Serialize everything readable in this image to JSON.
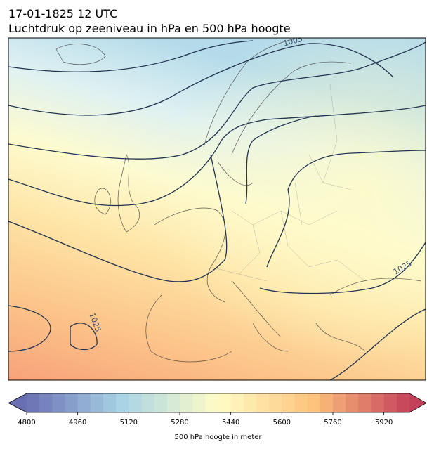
{
  "header": {
    "date": "17-01-1825 12 UTC",
    "title": "Luchtdruk op zeeniveau in hPa en 500 hPa hoogte"
  },
  "map": {
    "contour_labels": [
      1005,
      1025,
      1025
    ]
  },
  "colorbar": {
    "lim": [
      4800,
      6000
    ],
    "step": 40,
    "ticks": [
      4800,
      4960,
      5120,
      5280,
      5440,
      5600,
      5760,
      5920
    ],
    "label": "500 hPa hoogte in meter"
  }
}
